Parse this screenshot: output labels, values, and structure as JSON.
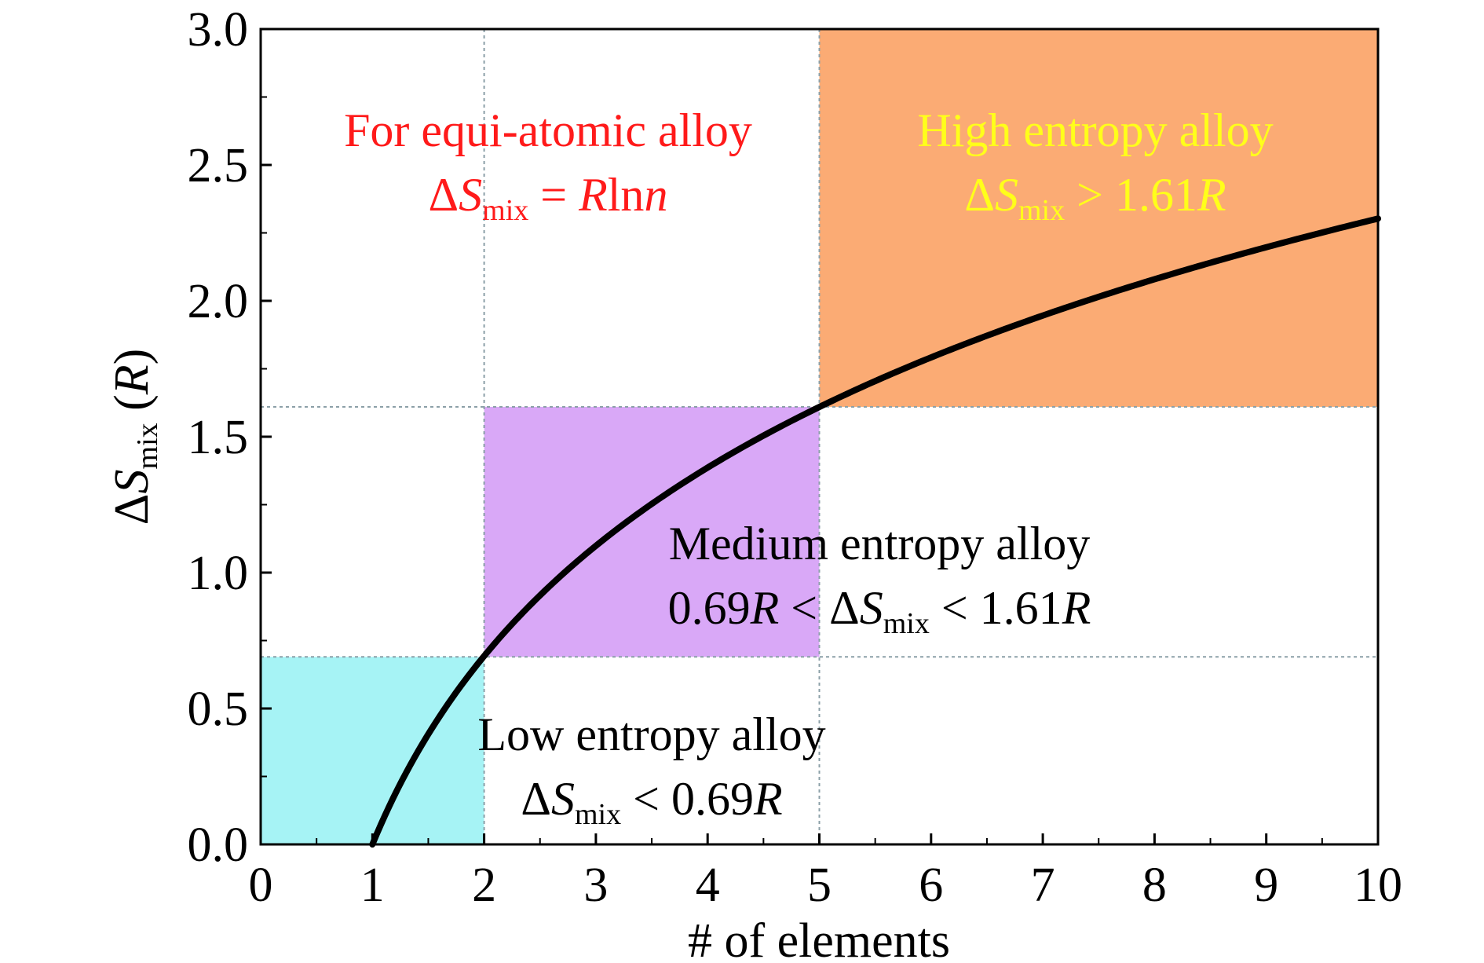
{
  "chart_data": {
    "type": "line",
    "xlabel": "# of elements",
    "ylabel": {
      "delta": "Δ",
      "symbol": "S",
      "subscript": "mix",
      "unit": " (",
      "unit_symbol": "R",
      "unit_close": ")"
    },
    "xlim": [
      0,
      10
    ],
    "ylim": [
      0,
      3.0
    ],
    "x_ticks": [
      "0",
      "1",
      "2",
      "3",
      "4",
      "5",
      "6",
      "7",
      "8",
      "9",
      "10"
    ],
    "y_ticks": [
      "0.0",
      "0.5",
      "1.0",
      "1.5",
      "2.0",
      "2.5",
      "3.0"
    ],
    "series": [
      {
        "function": "ln(x)",
        "x_range": [
          1,
          10
        ],
        "color": "#000000",
        "points": [
          [
            1,
            0
          ],
          [
            2,
            0.693
          ],
          [
            3,
            1.099
          ],
          [
            4,
            1.386
          ],
          [
            5,
            1.609
          ],
          [
            6,
            1.792
          ],
          [
            7,
            1.946
          ],
          [
            8,
            2.079
          ],
          [
            9,
            2.197
          ],
          [
            10,
            2.303
          ]
        ]
      }
    ],
    "regions": [
      {
        "name": "low",
        "x": [
          0,
          2
        ],
        "y": [
          0,
          0.69
        ],
        "color": "#a6f3f5"
      },
      {
        "name": "medium",
        "x": [
          2,
          5
        ],
        "y": [
          0.69,
          1.61
        ],
        "color": "#d9a8f7"
      },
      {
        "name": "high",
        "x": [
          5,
          10
        ],
        "y": [
          1.61,
          3.0
        ],
        "color": "#fbab74"
      }
    ],
    "guide_lines": {
      "vertical": [
        2,
        5
      ],
      "horizontal": [
        0.69,
        1.61
      ],
      "color": "#8ca0a8"
    },
    "annotations": {
      "equi": {
        "line1": "For equi-atomic alloy",
        "delta": "Δ",
        "S": "S",
        "sub": "mix",
        "eq": " = ",
        "R": "R",
        "ln": "ln",
        "n": "n",
        "color": "#ff1a1a"
      },
      "high": {
        "line1": "High entropy alloy",
        "delta": "Δ",
        "S": "S",
        "sub": "mix",
        "rel": " > 1.61",
        "R": "R",
        "color": "#ffff1a"
      },
      "medium": {
        "line1": "Medium entropy alloy",
        "pre": "0.69",
        "R1": "R",
        "lt1": " < Δ",
        "S": "S",
        "sub": "mix",
        "lt2": " < 1.61",
        "R2": "R",
        "color": "#000000"
      },
      "low": {
        "line1": "Low entropy alloy",
        "delta": "Δ",
        "S": "S",
        "sub": "mix",
        "rel": " < 0.69",
        "R": "R",
        "color": "#000000"
      }
    }
  }
}
